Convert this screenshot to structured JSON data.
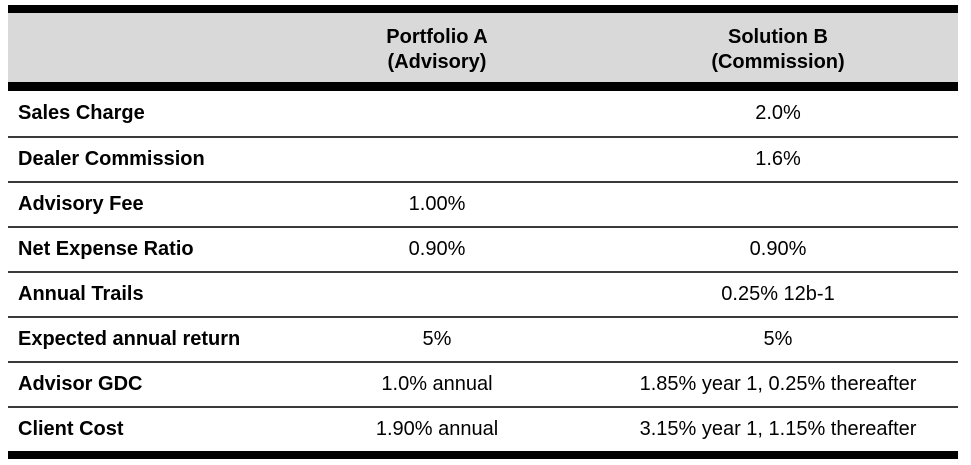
{
  "table": {
    "colors": {
      "header_bg": "#d9d9d9",
      "heavy_border": "#000000",
      "row_divider": "#3a3a3a",
      "text": "#000000"
    },
    "columns": [
      {
        "label": "",
        "sublabel": ""
      },
      {
        "label": "Portfolio A",
        "sublabel": "(Advisory)"
      },
      {
        "label": "Solution B",
        "sublabel": "(Commission)"
      }
    ],
    "rows": [
      {
        "label": "Sales Charge",
        "a": "",
        "b": "2.0%"
      },
      {
        "label": "Dealer Commission",
        "a": "",
        "b": "1.6%"
      },
      {
        "label": "Advisory Fee",
        "a": "1.00%",
        "b": ""
      },
      {
        "label": "Net Expense Ratio",
        "a": "0.90%",
        "b": "0.90%"
      },
      {
        "label": "Annual Trails",
        "a": "",
        "b": "0.25% 12b-1"
      },
      {
        "label": "Expected annual return",
        "a": "5%",
        "b": "5%"
      },
      {
        "label": "Advisor GDC",
        "a": "1.0% annual",
        "b": "1.85% year 1, 0.25% thereafter"
      },
      {
        "label": "Client Cost",
        "a": "1.90% annual",
        "b": "3.15% year 1, 1.15% thereafter"
      }
    ]
  }
}
